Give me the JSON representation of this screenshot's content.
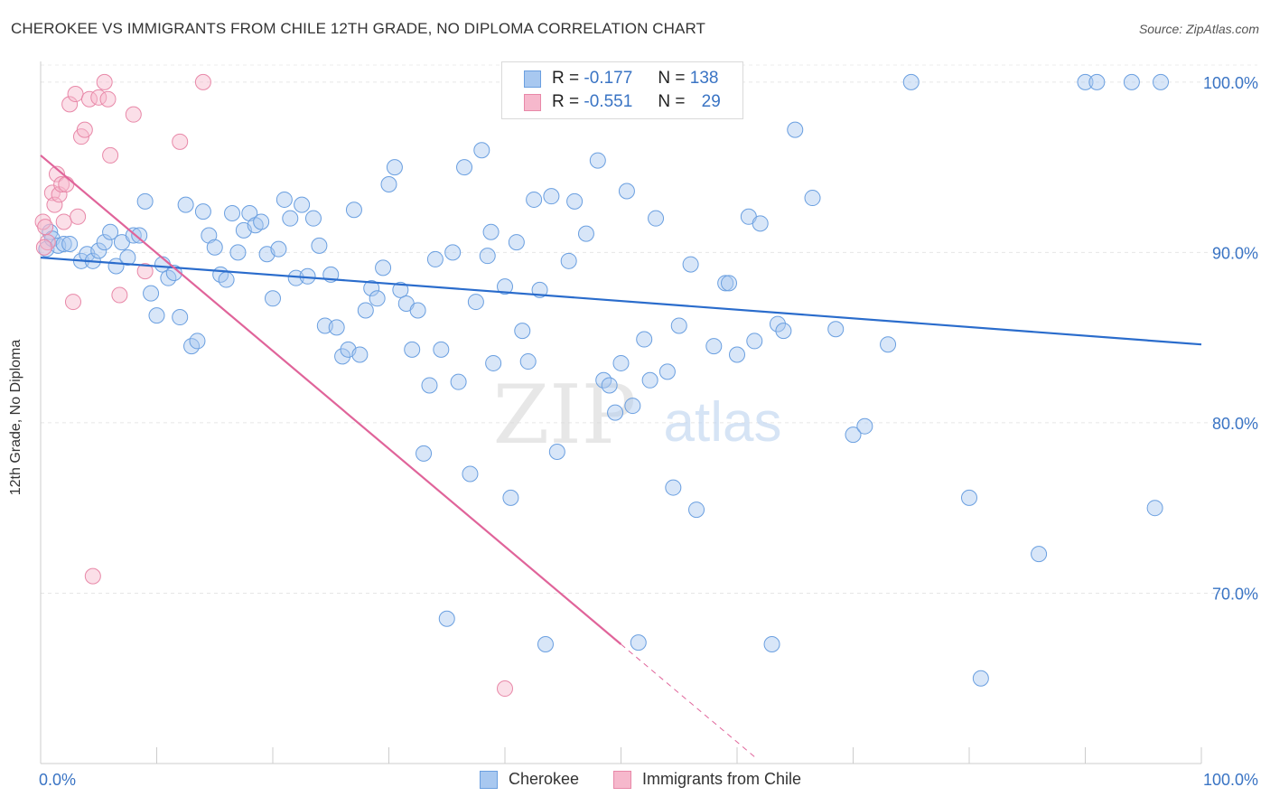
{
  "title": "CHEROKEE VS IMMIGRANTS FROM CHILE 12TH GRADE, NO DIPLOMA CORRELATION CHART",
  "source": "Source: ZipAtlas.com",
  "watermark": {
    "zip": "ZIP",
    "atlas": "atlas"
  },
  "legend_stats": {
    "r_label": "R =",
    "n_label": "N =",
    "rows": [
      {
        "series": "Cherokee",
        "r": "-0.177",
        "n": "138"
      },
      {
        "series": "Immigrants from Chile",
        "r": "-0.551",
        "n": "29"
      }
    ]
  },
  "chart_data": {
    "type": "scatter",
    "ylabel": "12th Grade, No Diploma",
    "xlabel": "",
    "x_tick_labels": [
      "0.0%",
      "100.0%"
    ],
    "y_tick_labels": [
      "100.0%",
      "90.0%",
      "80.0%",
      "70.0%"
    ],
    "y_ticks": [
      100,
      90,
      80,
      70
    ],
    "xlim": [
      0,
      100
    ],
    "ylim": [
      60,
      101
    ],
    "grid": true,
    "legend_position": "bottom",
    "colors": {
      "cherokee_fill": "#a8c8f0",
      "cherokee_stroke": "#6a9fe0",
      "cherokee_line": "#2a6ccc",
      "chile_fill": "#f6b8cc",
      "chile_stroke": "#e888a8",
      "chile_line": "#e0649a",
      "axis_text": "#3a74c4"
    },
    "series": [
      {
        "name": "Cherokee",
        "trend": {
          "x": [
            0,
            100
          ],
          "y": [
            89.7,
            84.6
          ]
        },
        "points": [
          [
            0.5,
            90.2
          ],
          [
            0.8,
            91.2
          ],
          [
            1.0,
            90.8
          ],
          [
            1.5,
            90.4
          ],
          [
            2.0,
            90.5
          ],
          [
            2.5,
            90.5
          ],
          [
            3.5,
            89.5
          ],
          [
            4.0,
            89.9
          ],
          [
            4.5,
            89.5
          ],
          [
            5.0,
            90.1
          ],
          [
            5.5,
            90.6
          ],
          [
            6.0,
            91.2
          ],
          [
            6.5,
            89.2
          ],
          [
            7.0,
            90.6
          ],
          [
            7.5,
            89.7
          ],
          [
            8.0,
            91.0
          ],
          [
            8.5,
            91.0
          ],
          [
            9.0,
            93.0
          ],
          [
            9.5,
            87.6
          ],
          [
            10.0,
            86.3
          ],
          [
            10.5,
            89.3
          ],
          [
            11.0,
            88.5
          ],
          [
            11.5,
            88.8
          ],
          [
            12.0,
            86.2
          ],
          [
            12.5,
            92.8
          ],
          [
            13.0,
            84.5
          ],
          [
            13.5,
            84.8
          ],
          [
            14.0,
            92.4
          ],
          [
            14.5,
            91.0
          ],
          [
            15.0,
            90.3
          ],
          [
            15.5,
            88.7
          ],
          [
            16.0,
            88.4
          ],
          [
            16.5,
            92.3
          ],
          [
            17.0,
            90.0
          ],
          [
            17.5,
            91.3
          ],
          [
            18.0,
            92.3
          ],
          [
            18.5,
            91.6
          ],
          [
            19.0,
            91.8
          ],
          [
            19.5,
            89.9
          ],
          [
            20.0,
            87.3
          ],
          [
            20.5,
            90.2
          ],
          [
            21.0,
            93.1
          ],
          [
            21.5,
            92.0
          ],
          [
            22.0,
            88.5
          ],
          [
            22.5,
            92.8
          ],
          [
            23.0,
            88.6
          ],
          [
            23.5,
            92.0
          ],
          [
            24.0,
            90.4
          ],
          [
            24.5,
            85.7
          ],
          [
            25.0,
            88.7
          ],
          [
            25.5,
            85.6
          ],
          [
            26.0,
            83.9
          ],
          [
            26.5,
            84.3
          ],
          [
            27.0,
            92.5
          ],
          [
            27.5,
            84.0
          ],
          [
            28.0,
            86.6
          ],
          [
            28.5,
            87.9
          ],
          [
            29.0,
            87.3
          ],
          [
            29.5,
            89.1
          ],
          [
            30.0,
            94.0
          ],
          [
            30.5,
            95.0
          ],
          [
            31.0,
            87.8
          ],
          [
            31.5,
            87.0
          ],
          [
            32.0,
            84.3
          ],
          [
            32.5,
            86.6
          ],
          [
            33.0,
            78.2
          ],
          [
            33.5,
            82.2
          ],
          [
            34.0,
            89.6
          ],
          [
            34.5,
            84.3
          ],
          [
            35.0,
            68.5
          ],
          [
            35.5,
            90.0
          ],
          [
            36.0,
            82.4
          ],
          [
            36.5,
            95.0
          ],
          [
            37.0,
            77.0
          ],
          [
            37.5,
            87.1
          ],
          [
            38.0,
            96.0
          ],
          [
            38.5,
            89.8
          ],
          [
            38.8,
            91.2
          ],
          [
            39.0,
            83.5
          ],
          [
            40.0,
            88.0
          ],
          [
            40.5,
            75.6
          ],
          [
            41.0,
            90.6
          ],
          [
            41.5,
            85.4
          ],
          [
            42.0,
            83.6
          ],
          [
            42.5,
            93.1
          ],
          [
            43.0,
            87.8
          ],
          [
            43.5,
            67.0
          ],
          [
            44.0,
            93.3
          ],
          [
            44.5,
            78.3
          ],
          [
            45.0,
            100.0
          ],
          [
            45.5,
            89.5
          ],
          [
            46.0,
            93.0
          ],
          [
            47.0,
            91.1
          ],
          [
            48.0,
            95.4
          ],
          [
            48.5,
            82.5
          ],
          [
            49.0,
            82.2
          ],
          [
            49.5,
            80.6
          ],
          [
            50.0,
            83.5
          ],
          [
            50.5,
            93.6
          ],
          [
            51.0,
            81.0
          ],
          [
            51.5,
            67.1
          ],
          [
            52.0,
            84.9
          ],
          [
            52.5,
            82.5
          ],
          [
            53.0,
            92.0
          ],
          [
            54.0,
            83.0
          ],
          [
            54.5,
            76.2
          ],
          [
            55.0,
            85.7
          ],
          [
            56.0,
            89.3
          ],
          [
            56.5,
            74.9
          ],
          [
            58.0,
            84.5
          ],
          [
            59.0,
            88.2
          ],
          [
            59.3,
            88.2
          ],
          [
            60.0,
            84.0
          ],
          [
            61.0,
            92.1
          ],
          [
            61.5,
            84.8
          ],
          [
            62.0,
            91.7
          ],
          [
            63.0,
            67.0
          ],
          [
            63.5,
            85.8
          ],
          [
            64.0,
            85.4
          ],
          [
            65.0,
            97.2
          ],
          [
            66.5,
            93.2
          ],
          [
            68.5,
            85.5
          ],
          [
            70.0,
            79.3
          ],
          [
            71.0,
            79.8
          ],
          [
            73.0,
            84.6
          ],
          [
            75.0,
            100.0
          ],
          [
            80.0,
            75.6
          ],
          [
            81.0,
            65.0
          ],
          [
            86.0,
            72.3
          ],
          [
            90.0,
            100.0
          ],
          [
            91.0,
            100.0
          ],
          [
            94.0,
            100.0
          ],
          [
            96.0,
            75.0
          ],
          [
            96.5,
            100.0
          ]
        ]
      },
      {
        "name": "Immigrants from Chile",
        "trend": {
          "x": [
            0,
            50
          ],
          "y": [
            95.7,
            67.0
          ],
          "dashed_extension": {
            "x": [
              50,
              61.5
            ],
            "y": [
              67.0,
              60.4
            ]
          }
        },
        "points": [
          [
            0.2,
            91.8
          ],
          [
            0.4,
            91.5
          ],
          [
            0.6,
            90.6
          ],
          [
            1.0,
            93.5
          ],
          [
            1.2,
            92.8
          ],
          [
            1.4,
            94.6
          ],
          [
            1.6,
            93.4
          ],
          [
            1.8,
            94.0
          ],
          [
            2.0,
            91.8
          ],
          [
            2.2,
            94.0
          ],
          [
            2.5,
            98.7
          ],
          [
            2.8,
            87.1
          ],
          [
            3.0,
            99.3
          ],
          [
            3.2,
            92.1
          ],
          [
            3.5,
            96.8
          ],
          [
            3.8,
            97.2
          ],
          [
            4.2,
            99.0
          ],
          [
            4.5,
            71.0
          ],
          [
            5.0,
            99.1
          ],
          [
            5.5,
            100.0
          ],
          [
            5.8,
            99.0
          ],
          [
            6.0,
            95.7
          ],
          [
            6.8,
            87.5
          ],
          [
            8.0,
            98.1
          ],
          [
            9.0,
            88.9
          ],
          [
            12.0,
            96.5
          ],
          [
            14.0,
            100.0
          ],
          [
            40.0,
            64.4
          ],
          [
            0.3,
            90.3
          ]
        ]
      }
    ]
  }
}
